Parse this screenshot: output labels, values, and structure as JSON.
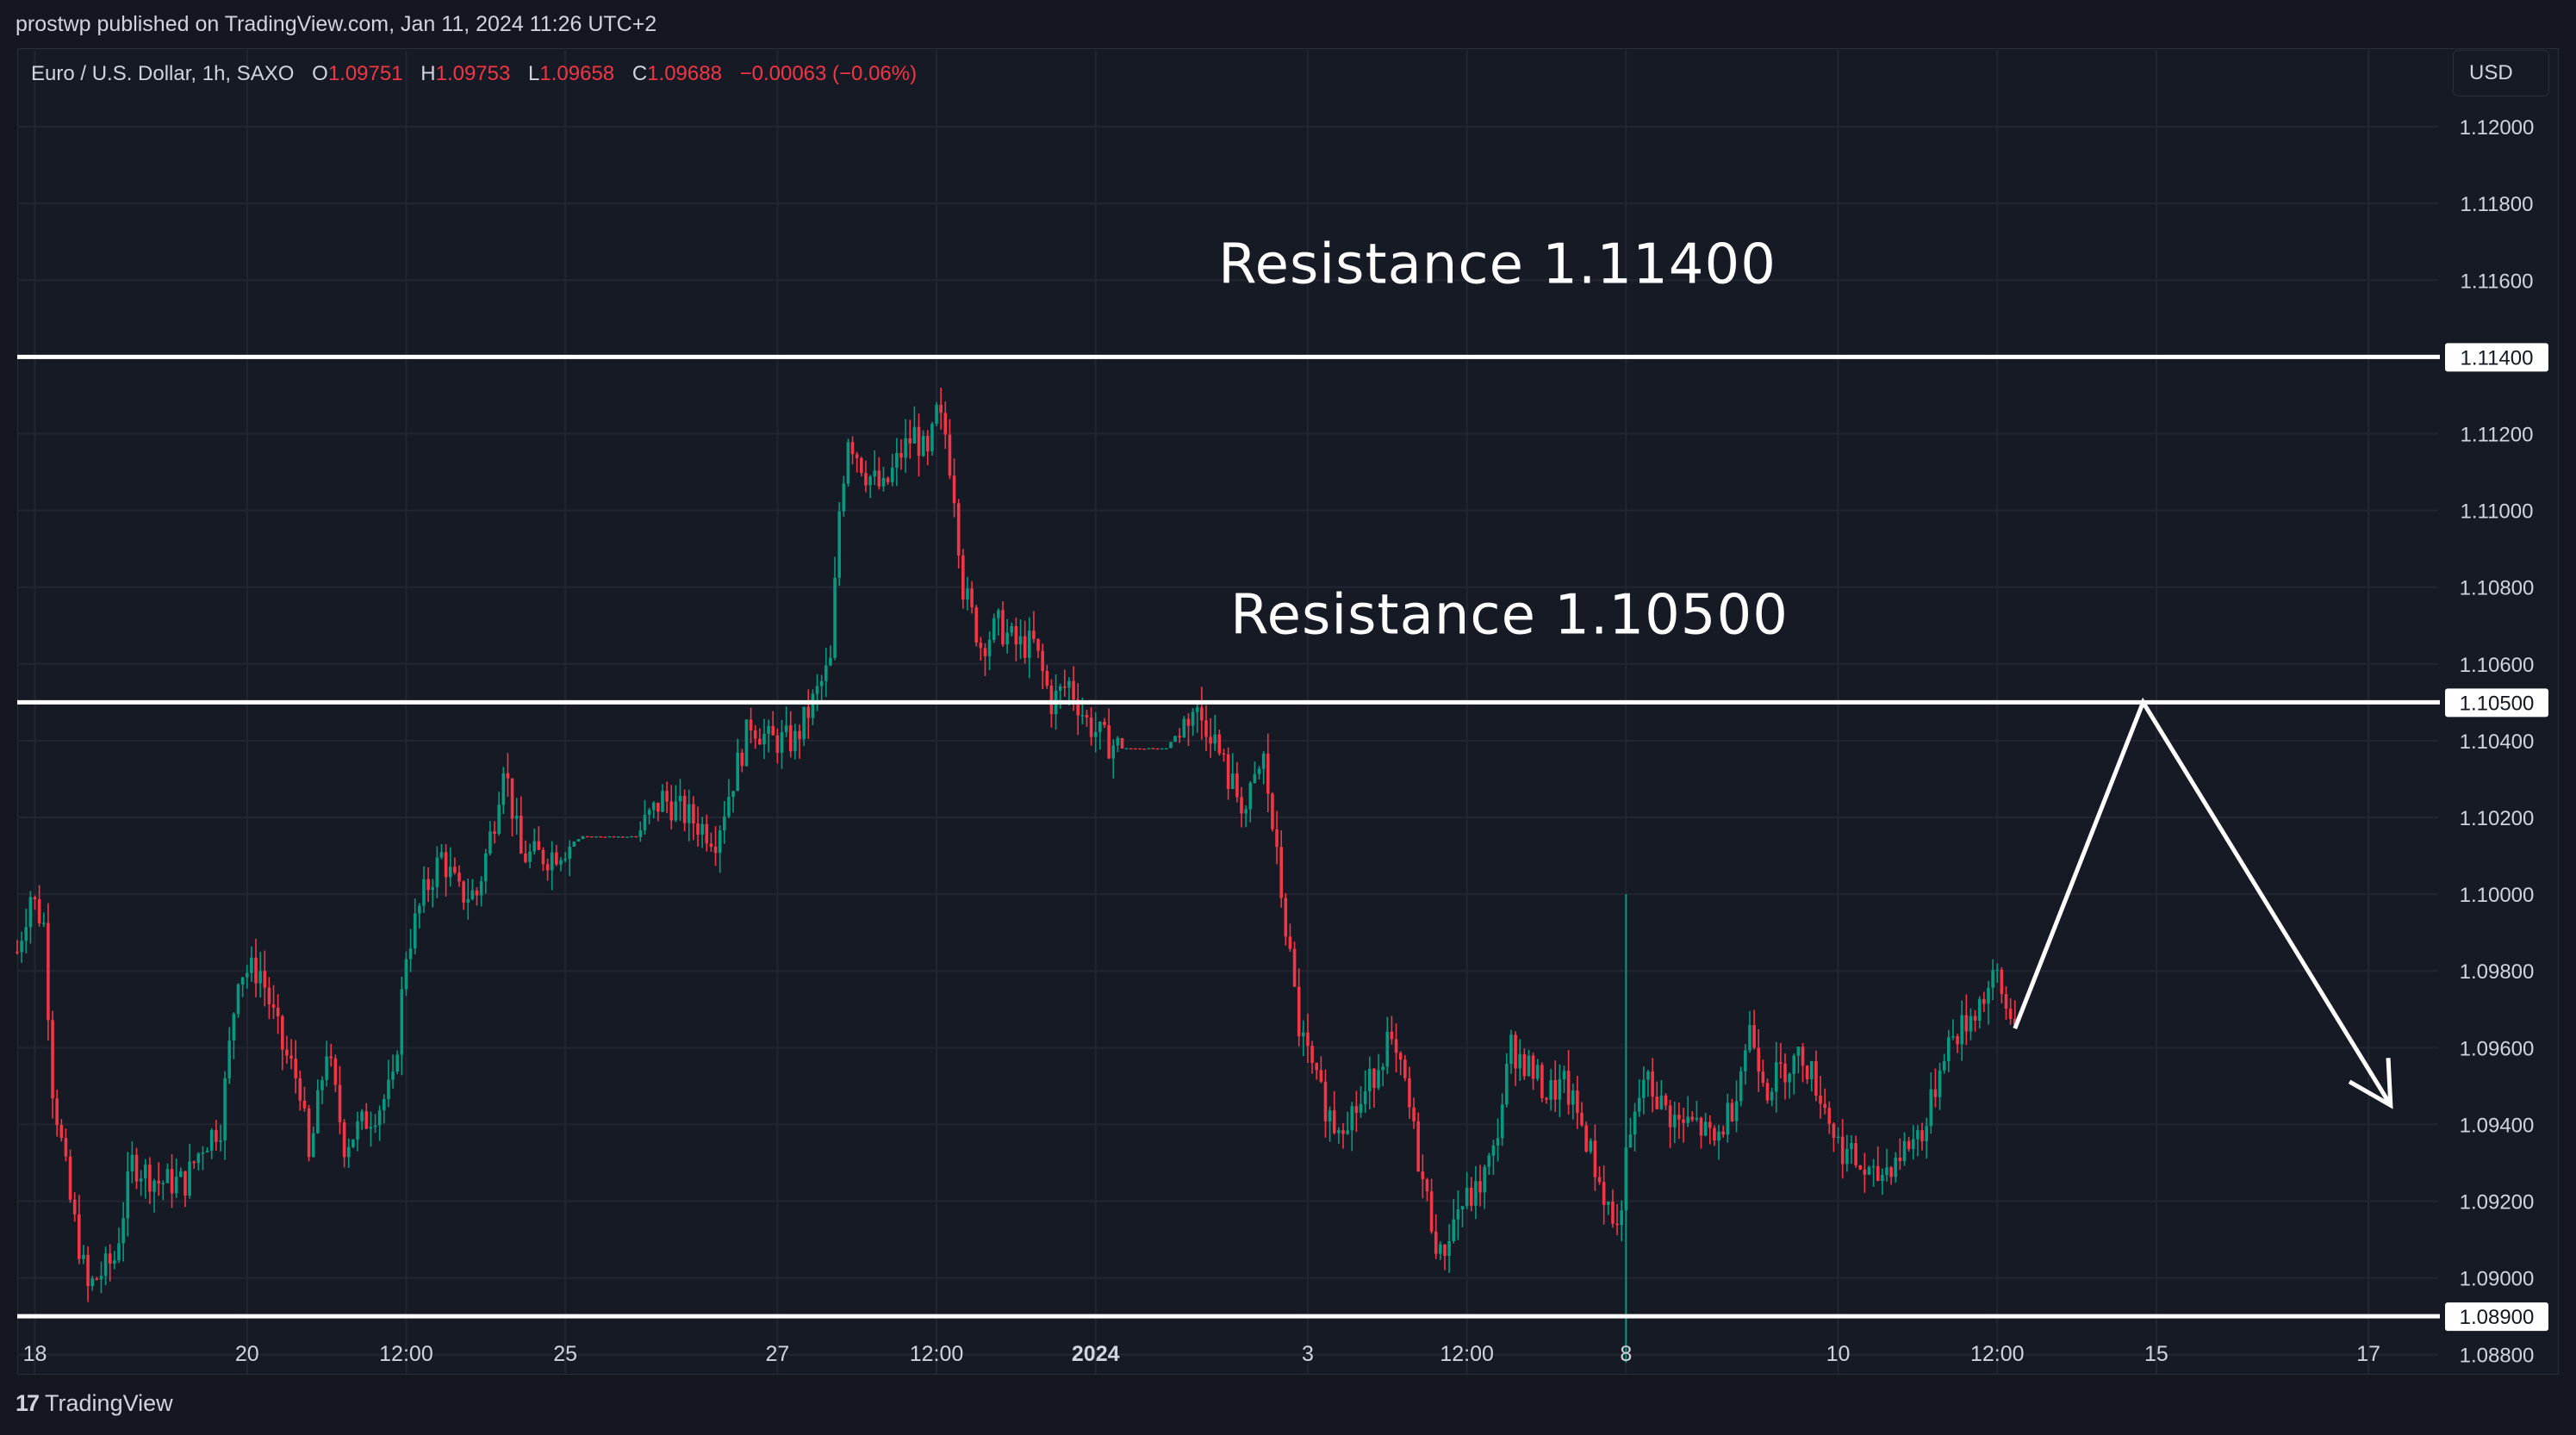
{
  "header": {
    "published_by": "prostwp published on TradingView.com, Jan 11, 2024 11:26 UTC+2"
  },
  "legend": {
    "symbol": "Euro / U.S. Dollar, 1h, SAXO",
    "open_label": "O",
    "open": "1.09751",
    "high_label": "H",
    "high": "1.09753",
    "low_label": "L",
    "low": "1.09658",
    "close_label": "C",
    "close": "1.09688",
    "change": "−0.00063 (−0.06%)"
  },
  "currency_button": "USD",
  "footer": {
    "logo_mark": "17",
    "logo_text": "TradingView"
  },
  "colors": {
    "background": "#161a25",
    "grid": "#232632",
    "up": "#089981",
    "down": "#f23645",
    "level_line": "#ffffff",
    "text": "#d1d4dc"
  },
  "chart_data": {
    "type": "candlestick",
    "ylim": [
      1.0875,
      1.122
    ],
    "y_ticks": [
      "1.12000",
      "1.11800",
      "1.11600",
      "1.11400",
      "1.11200",
      "1.11000",
      "1.10800",
      "1.10600",
      "1.10400",
      "1.10200",
      "1.10000",
      "1.09800",
      "1.09600",
      "1.09400",
      "1.09200",
      "1.09000",
      "1.08800"
    ],
    "x_ticks": [
      {
        "label": "18",
        "idx": 4
      },
      {
        "label": "20",
        "idx": 52
      },
      {
        "label": "12:00",
        "idx": 88
      },
      {
        "label": "25",
        "idx": 124
      },
      {
        "label": "27",
        "idx": 172
      },
      {
        "label": "12:00",
        "idx": 208
      },
      {
        "label": "2024",
        "idx": 244,
        "bold": true
      },
      {
        "label": "3",
        "idx": 292
      },
      {
        "label": "12:00",
        "idx": 328
      },
      {
        "label": "8",
        "idx": 364
      },
      {
        "label": "10",
        "idx": 412
      },
      {
        "label": "12:00",
        "idx": 448
      },
      {
        "label": "15",
        "idx": 484
      },
      {
        "label": "17",
        "idx": 532
      }
    ],
    "levels": [
      {
        "price": 1.114,
        "label": "1.11400",
        "annotation": "Resistance 1.11400"
      },
      {
        "price": 1.105,
        "label": "1.10500",
        "annotation": "Resistance 1.10500"
      },
      {
        "price": 1.089,
        "label": "1.08900",
        "annotation": ""
      }
    ],
    "projection": [
      {
        "idx": 452,
        "price": 1.0965
      },
      {
        "idx": 481,
        "price": 1.105
      },
      {
        "idx": 537,
        "price": 1.0945
      }
    ],
    "anchors": [
      [
        0,
        1.0985
      ],
      [
        3,
        1.1
      ],
      [
        6,
        1.0992
      ],
      [
        8,
        1.095
      ],
      [
        12,
        1.092
      ],
      [
        16,
        1.0897
      ],
      [
        18,
        1.09
      ],
      [
        22,
        1.0905
      ],
      [
        26,
        1.093
      ],
      [
        32,
        1.0925
      ],
      [
        38,
        1.0925
      ],
      [
        42,
        1.0935
      ],
      [
        46,
        1.094
      ],
      [
        50,
        1.098
      ],
      [
        55,
        1.098
      ],
      [
        60,
        1.096
      ],
      [
        64,
        1.095
      ],
      [
        66,
        1.093
      ],
      [
        70,
        1.096
      ],
      [
        74,
        1.0935
      ],
      [
        78,
        1.094
      ],
      [
        82,
        1.0945
      ],
      [
        85,
        1.095
      ],
      [
        88,
        1.0985
      ],
      [
        92,
        1.1
      ],
      [
        96,
        1.101
      ],
      [
        100,
        1.1
      ],
      [
        104,
        1.1
      ],
      [
        108,
        1.102
      ],
      [
        110,
        1.1035
      ],
      [
        114,
        1.101
      ],
      [
        120,
        1.101
      ],
      [
        128,
        1.1015
      ],
      [
        134,
        1.1015
      ],
      [
        140,
        1.1015
      ],
      [
        146,
        1.1025
      ],
      [
        152,
        1.102
      ],
      [
        158,
        1.1015
      ],
      [
        162,
        1.103
      ],
      [
        166,
        1.1045
      ],
      [
        170,
        1.104
      ],
      [
        176,
        1.104
      ],
      [
        180,
        1.105
      ],
      [
        184,
        1.106
      ],
      [
        186,
        1.11
      ],
      [
        188,
        1.112
      ],
      [
        192,
        1.111
      ],
      [
        196,
        1.1105
      ],
      [
        200,
        1.1115
      ],
      [
        203,
        1.112
      ],
      [
        206,
        1.1113
      ],
      [
        208,
        1.1125
      ],
      [
        210,
        1.112
      ],
      [
        212,
        1.1105
      ],
      [
        214,
        1.108
      ],
      [
        218,
        1.1065
      ],
      [
        222,
        1.107
      ],
      [
        226,
        1.1065
      ],
      [
        230,
        1.1065
      ],
      [
        234,
        1.105
      ],
      [
        238,
        1.1055
      ],
      [
        242,
        1.1045
      ],
      [
        246,
        1.104
      ],
      [
        250,
        1.1038
      ],
      [
        260,
        1.1038
      ],
      [
        266,
        1.1048
      ],
      [
        270,
        1.1043
      ],
      [
        274,
        1.103
      ],
      [
        278,
        1.1022
      ],
      [
        282,
        1.1035
      ],
      [
        286,
        1.1
      ],
      [
        290,
        1.0965
      ],
      [
        294,
        1.095
      ],
      [
        298,
        1.094
      ],
      [
        304,
        1.0945
      ],
      [
        310,
        1.0962
      ],
      [
        314,
        1.095
      ],
      [
        318,
        1.0925
      ],
      [
        322,
        1.0905
      ],
      [
        326,
        1.0918
      ],
      [
        330,
        1.0922
      ],
      [
        334,
        1.0932
      ],
      [
        338,
        1.096
      ],
      [
        342,
        1.0955
      ],
      [
        346,
        1.0948
      ],
      [
        350,
        1.095
      ],
      [
        354,
        1.094
      ],
      [
        358,
        1.0925
      ],
      [
        362,
        1.0912
      ],
      [
        364,
        1.093
      ],
      [
        368,
        1.0952
      ],
      [
        372,
        1.0945
      ],
      [
        376,
        1.094
      ],
      [
        380,
        1.094
      ],
      [
        384,
        1.0935
      ],
      [
        388,
        1.0945
      ],
      [
        392,
        1.0965
      ],
      [
        396,
        1.095
      ],
      [
        400,
        1.0955
      ],
      [
        404,
        1.0958
      ],
      [
        408,
        1.0948
      ],
      [
        412,
        1.0935
      ],
      [
        416,
        1.093
      ],
      [
        420,
        1.0925
      ],
      [
        424,
        1.093
      ],
      [
        428,
        1.0935
      ],
      [
        432,
        1.094
      ],
      [
        436,
        1.096
      ],
      [
        440,
        1.0965
      ],
      [
        444,
        1.0972
      ],
      [
        448,
        1.0978
      ],
      [
        450,
        1.097
      ],
      [
        452,
        1.0969
      ]
    ]
  }
}
